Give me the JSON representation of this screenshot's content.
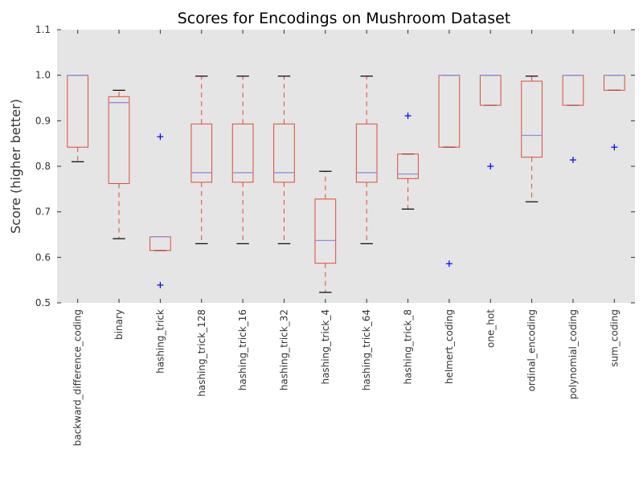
{
  "chart_data": {
    "type": "box",
    "title": "Scores for Encodings on Mushroom Dataset",
    "xlabel": "",
    "ylabel": "Score (higher better)",
    "ylim": [
      0.5,
      1.1
    ],
    "yticks": [
      "0.5",
      "0.6",
      "0.7",
      "0.8",
      "0.9",
      "1.0",
      "1.1"
    ],
    "grid": false,
    "colors": {
      "background": "#e5e5e5",
      "box": "#e24a33",
      "median": "#9988dd",
      "whisker_cap": "#000000",
      "flier": "#0000ff"
    },
    "categories": [
      "backward_difference_coding",
      "binary",
      "hashing_trick",
      "hashing_trick_128",
      "hashing_trick_16",
      "hashing_trick_32",
      "hashing_trick_4",
      "hashing_trick_64",
      "hashing_trick_8",
      "helmert_coding",
      "one_hot",
      "ordinal_encoding",
      "polynomial_coding",
      "sum_coding"
    ],
    "boxes": [
      {
        "whislo": 0.81,
        "q1": 0.842,
        "median": 1.0,
        "q3": 1.0,
        "whishi": 1.0,
        "fliers": []
      },
      {
        "whislo": 0.641,
        "q1": 0.762,
        "median": 0.94,
        "q3": 0.953,
        "whishi": 0.967,
        "fliers": []
      },
      {
        "whislo": 0.615,
        "q1": 0.615,
        "median": 0.645,
        "q3": 0.645,
        "whishi": 0.645,
        "fliers": [
          0.865,
          0.539
        ]
      },
      {
        "whislo": 0.63,
        "q1": 0.765,
        "median": 0.786,
        "q3": 0.893,
        "whishi": 0.998,
        "fliers": []
      },
      {
        "whislo": 0.63,
        "q1": 0.765,
        "median": 0.786,
        "q3": 0.893,
        "whishi": 0.998,
        "fliers": []
      },
      {
        "whislo": 0.63,
        "q1": 0.765,
        "median": 0.786,
        "q3": 0.893,
        "whishi": 0.998,
        "fliers": []
      },
      {
        "whislo": 0.523,
        "q1": 0.587,
        "median": 0.637,
        "q3": 0.728,
        "whishi": 0.789,
        "fliers": []
      },
      {
        "whislo": 0.63,
        "q1": 0.765,
        "median": 0.786,
        "q3": 0.893,
        "whishi": 0.998,
        "fliers": []
      },
      {
        "whislo": 0.706,
        "q1": 0.773,
        "median": 0.783,
        "q3": 0.827,
        "whishi": 0.827,
        "fliers": [
          0.911
        ]
      },
      {
        "whislo": 0.842,
        "q1": 0.842,
        "median": 1.0,
        "q3": 1.0,
        "whishi": 1.0,
        "fliers": [
          0.586
        ]
      },
      {
        "whislo": 0.934,
        "q1": 0.934,
        "median": 1.0,
        "q3": 1.0,
        "whishi": 1.0,
        "fliers": [
          0.8
        ]
      },
      {
        "whislo": 0.722,
        "q1": 0.82,
        "median": 0.868,
        "q3": 0.987,
        "whishi": 0.998,
        "fliers": []
      },
      {
        "whislo": 0.934,
        "q1": 0.934,
        "median": 1.0,
        "q3": 1.0,
        "whishi": 1.0,
        "fliers": [
          0.814
        ]
      },
      {
        "whislo": 0.967,
        "q1": 0.967,
        "median": 1.0,
        "q3": 1.0,
        "whishi": 1.0,
        "fliers": [
          0.842
        ]
      }
    ]
  }
}
